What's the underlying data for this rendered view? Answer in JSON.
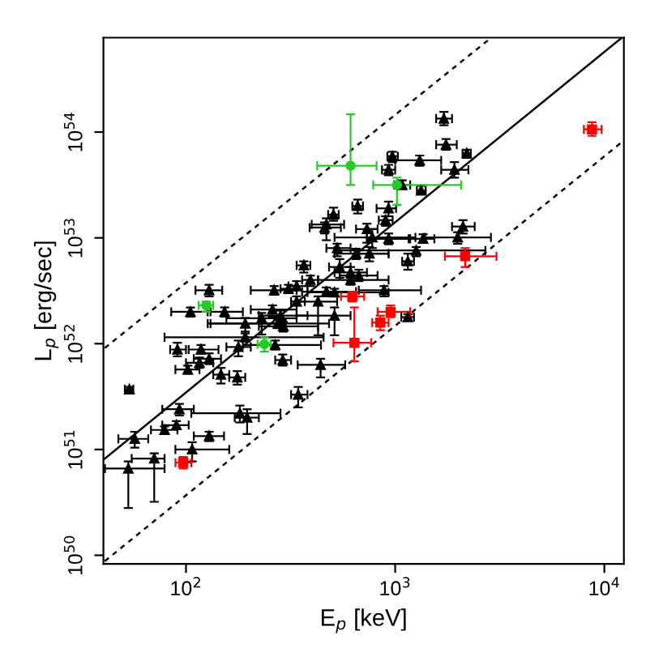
{
  "chart_data": {
    "type": "scatter",
    "xlabel": "E$_{p}$ [keV]",
    "ylabel": "L$_{p}$ [erg/sec]",
    "log": "xy",
    "grid": false,
    "xlim": [
      40.3,
      12400
    ],
    "ylim": [
      8.3e+49,
      7.8e+54
    ],
    "xticks": [
      {
        "value": 100,
        "label": "10$^{2}$"
      },
      {
        "value": 1000,
        "label": "10$^{3}$"
      },
      {
        "value": 10000,
        "label": "10$^{4}$"
      }
    ],
    "yticks": [
      {
        "value": 1e+50,
        "label": "10$^{50}$"
      },
      {
        "value": 1e+51,
        "label": "10$^{51}$"
      },
      {
        "value": 1e+52,
        "label": "10$^{52}$"
      },
      {
        "value": 1e+53,
        "label": "10$^{53}$"
      },
      {
        "value": 1e+54,
        "label": "10$^{54}$"
      }
    ],
    "series": [
      {
        "type": "line",
        "color": "#000000",
        "line_style": "solid",
        "marker": "none",
        "x": [
          40.9,
          12000
        ],
        "values": [
          8.2e+50,
          7.66e+54
        ]
      },
      {
        "type": "line",
        "color": "#000000",
        "line_style": "dashed",
        "marker": "none",
        "x": [
          40.9,
          2880
        ],
        "values": [
          9.1e+51,
          7.8e+54
        ]
      },
      {
        "type": "line",
        "color": "#000000",
        "line_style": "dashed",
        "marker": "none",
        "x": [
          40.9,
          12000
        ],
        "values": [
          8.8e+49,
          7.9e+53
        ]
      },
      {
        "color": "#000000",
        "marker": "triangle",
        "x": [
          1710,
          1750,
          2200,
          970,
          1310,
          930,
          1920,
          1080,
          1330,
          662,
          507,
          930,
          900,
          469,
          460,
          733,
          2110,
          1990,
          1360,
          777,
          930,
          1260,
          1150,
          753,
          650,
          528,
          366,
          543,
          612,
          670,
          612,
          393,
          338,
          309,
          264,
          469,
          513,
          885,
          428,
          338,
          129,
          105,
          153,
          259,
          283,
          230,
          192,
          292,
          275,
          513,
          178,
          192,
          267,
          91,
          118,
          129,
          116,
          102,
          147,
          176,
          290,
          440,
          53.6,
          344,
          93,
          181,
          196,
          79,
          90,
          129,
          56.9,
          107,
          70.5,
          53,
          1150
        ],
        "values": [
          1.34e+54,
          7.6e+53,
          6.3e+53,
          5.9e+53,
          5.4e+53,
          4.4e+53,
          4.4e+53,
          3.16e+53,
          2.8e+53,
          2e+53,
          1.66e+53,
          1.9e+53,
          1.47e+53,
          1.34e+53,
          1.25e+53,
          1.21e+53,
          1.28e+53,
          1.01e+53,
          9.8e+52,
          1.01e+53,
          9.8e+52,
          7.6e+52,
          6e+52,
          7.1e+52,
          7.1e+52,
          8e+52,
          5.5e+52,
          5.3e+52,
          4.7e+52,
          4.4e+52,
          4e+52,
          4e+52,
          3.5e+52,
          3.3e+52,
          3.2e+52,
          3.1e+52,
          3.05e+52,
          3.2e+52,
          2.5e+52,
          2.5e+52,
          3.2e+52,
          2e+52,
          2e+52,
          2.1e+52,
          1.84e+52,
          1.74e+52,
          1.55e+52,
          1.46e+52,
          1.55e+52,
          1.84e+52,
          9.3e+51,
          1.15e+52,
          9.7e+51,
          8.8e+51,
          8.8e+51,
          7.2e+51,
          6.6e+51,
          5.7e+51,
          5.1e+51,
          4.8e+51,
          7e+51,
          6.3e+51,
          3.7e+51,
          3.3e+51,
          2.4e+51,
          2.2e+51,
          2e+51,
          1.53e+51,
          1.7e+51,
          1.34e+51,
          1.26e+51,
          1e+51,
          8.2e+50,
          6.6e+50,
          1.78e+52
        ],
        "xerrors": [
          [
            1570,
            1870
          ],
          [
            1570,
            1970
          ],
          [
            2100,
            2300
          ],
          [
            918,
            1030
          ],
          [
            1000,
            1660
          ],
          [
            865,
            1000
          ],
          [
            1660,
            2240
          ],
          [
            990,
            1180
          ],
          [
            1270,
            1400
          ],
          [
            624,
            702
          ],
          [
            478,
            537
          ],
          [
            815,
            1010
          ],
          [
            835,
            973
          ],
          [
            399,
            570
          ],
          [
            390,
            550
          ],
          [
            650,
            824
          ],
          [
            1870,
            2400
          ],
          [
            1390,
            2870
          ],
          [
            1160,
            1540
          ],
          [
            513,
            1250
          ],
          [
            733,
            1180
          ],
          [
            513,
            2700
          ],
          [
            1080,
            1230
          ],
          [
            670,
            930
          ],
          [
            513,
            930
          ],
          [
            469,
            612
          ],
          [
            338,
            393
          ],
          [
            483,
            612
          ],
          [
            513,
            733
          ],
          [
            543,
            824
          ],
          [
            428,
            930
          ],
          [
            359,
            428
          ],
          [
            309,
            381
          ],
          [
            283,
            338
          ],
          [
            204,
            338
          ],
          [
            359,
            650
          ],
          [
            381,
            930
          ],
          [
            670,
            1330
          ],
          [
            338,
            528
          ],
          [
            318,
            370
          ],
          [
            111,
            149
          ],
          [
            85,
            131
          ],
          [
            127,
            187
          ],
          [
            204,
            338
          ],
          [
            223,
            381
          ],
          [
            156,
            338
          ],
          [
            127,
            300
          ],
          [
            223,
            428
          ],
          [
            131,
            483
          ],
          [
            338,
            612
          ],
          [
            156,
            204
          ],
          [
            79,
            455
          ],
          [
            187,
            442
          ],
          [
            84,
            100
          ],
          [
            103,
            143
          ],
          [
            109,
            147
          ],
          [
            100,
            135
          ],
          [
            89,
            116
          ],
          [
            135,
            161
          ],
          [
            161,
            192
          ],
          [
            267,
            318
          ],
          [
            342,
            577
          ],
          [
            51,
            56
          ],
          [
            318,
            381
          ],
          [
            77,
            109
          ],
          [
            106,
            283
          ],
          [
            171,
            223
          ],
          [
            68,
            91
          ],
          [
            77,
            103
          ],
          [
            109,
            152
          ],
          [
            47.5,
            66
          ],
          [
            89,
            161
          ],
          [
            55,
            79
          ],
          [
            41,
            79
          ],
          [
            1070,
            1230
          ]
        ],
        "errors": [
          [
            1.16e+54,
            1.55e+54
          ],
          [
            6.8e+53,
            8.6e+53
          ],
          [
            5.7e+53,
            6.8e+53
          ],
          [
            5.2e+53,
            6.5e+53
          ],
          [
            4.8e+53,
            6e+53
          ],
          [
            3.9e+53,
            4.9e+53
          ],
          [
            3.7e+53,
            5.2e+53
          ],
          [
            2.9e+53,
            3.5e+53
          ],
          [
            2.6e+53,
            3.1e+53
          ],
          [
            1.7e+53,
            2.3e+53
          ],
          [
            1.45e+53,
            1.93e+53
          ],
          [
            1.6e+53,
            2.2e+53
          ],
          [
            1.3e+53,
            1.6e+53
          ],
          [
            9.5e+52,
            1.53e+53
          ],
          [
            1.1e+53,
            1.4e+53
          ],
          [
            9e+52,
            1.36e+53
          ],
          [
            1.1e+53,
            1.47e+53
          ],
          [
            8.8e+52,
            1.13e+53
          ],
          [
            9e+52,
            1.08e+53
          ],
          [
            8e+52,
            1.21e+53
          ],
          [
            8.7e+52,
            1.1e+53
          ],
          [
            6.7e+52,
            8.2e+52
          ],
          [
            5e+52,
            7.1e+52
          ],
          [
            6e+52,
            8.2e+52
          ],
          [
            6.3e+52,
            7.9e+52
          ],
          [
            6.7e+52,
            8.8e+52
          ],
          [
            4.7e+52,
            6e+52
          ],
          [
            4.2e+52,
            6.3e+52
          ],
          [
            4.2e+52,
            5.3e+52
          ],
          [
            3.9e+52,
            5e+52
          ],
          [
            3.6e+52,
            4.4e+52
          ],
          [
            3.5e+52,
            4.4e+52
          ],
          [
            3.2e+52,
            3.9e+52
          ],
          [
            3e+52,
            3.6e+52
          ],
          [
            2.9e+52,
            3.5e+52
          ],
          [
            2.8e+52,
            3.4e+52
          ],
          [
            2.8e+52,
            3.3e+52
          ],
          [
            2.8e+52,
            3.5e+52
          ],
          [
            1.2e+52,
            2.8e+52
          ],
          [
            2.3e+52,
            2.8e+52
          ],
          [
            2.8e+52,
            3.6e+52
          ],
          [
            1.8e+52,
            2.2e+52
          ],
          [
            1.8e+52,
            2.2e+52
          ],
          [
            1.8e+52,
            2.3e+52
          ],
          [
            1.65e+52,
            2.05e+52
          ],
          [
            1.22e+52,
            1.95e+52
          ],
          [
            1.3e+52,
            1.75e+52
          ],
          [
            1.3e+52,
            1.6e+52
          ],
          [
            1.4e+52,
            1.7e+52
          ],
          [
            1.2e+52,
            2.2e+52
          ],
          [
            7.6e+51,
            1.07e+52
          ],
          [
            1.05e+52,
            1.25e+52
          ],
          [
            8.8e+51,
            1.07e+52
          ],
          [
            7.6e+51,
            1.02e+52
          ],
          [
            8e+51,
            9.7e+51
          ],
          [
            6.4e+51,
            8.1e+51
          ],
          [
            5.9e+51,
            7.4e+51
          ],
          [
            5.2e+51,
            6.2e+51
          ],
          [
            4.2e+51,
            5.9e+51
          ],
          [
            4.1e+51,
            5.5e+51
          ],
          [
            6.2e+51,
            7.9e+51
          ],
          [
            4.8e+51,
            7.2e+51
          ],
          [
            3.5e+51,
            3.9e+51
          ],
          [
            2.5e+51,
            3.9e+51
          ],
          [
            2.1e+51,
            2.7e+51
          ],
          [
            1.8e+51,
            2.6e+51
          ],
          [
            1.4e+51,
            2.4e+51
          ],
          [
            1.4e+51,
            1.65e+51
          ],
          [
            1.55e+51,
            1.85e+51
          ],
          [
            1.2e+51,
            1.47e+51
          ],
          [
            1.04e+51,
            1.47e+51
          ],
          [
            7.7e+50,
            1.17e+51
          ],
          [
            3.2e+50,
            9.2e+50
          ],
          [
            2.8e+50,
            7.7e+50
          ],
          [
            1.65e+52,
            1.9e+52
          ]
        ]
      },
      {
        "color": "#22cc22",
        "marker": "circle",
        "x": [
          612,
          1020,
          125,
          237
        ],
        "values": [
          4.8e+53,
          3.16e+53,
          2.3e+52,
          9.9e+51
        ],
        "xerrors": [
          [
            424,
            815
          ],
          [
            785,
            2070
          ],
          [
            115,
            135
          ],
          [
            220,
            254
          ]
        ],
        "errors": [
          [
            3.16e+53,
            1.47e+54
          ],
          [
            2.05e+53,
            3.7e+53
          ],
          [
            2e+52,
            2.5e+52
          ],
          [
            8.4e+51,
            1.15e+52
          ]
        ]
      },
      {
        "color": "#ff0000",
        "marker": "square",
        "x": [
          8730,
          2160,
          624,
          951,
          849,
          638,
          97
        ],
        "values": [
          1.06e+54,
          6.7e+52,
          2.8e+52,
          2e+52,
          1.58e+52,
          1.02e+52,
          7.5e+50
        ],
        "xerrors": [
          [
            7980,
            9700
          ],
          [
            1730,
            3050
          ],
          [
            551,
            711
          ],
          [
            824,
            1180
          ],
          [
            777,
            930
          ],
          [
            507,
            767
          ],
          [
            89,
            106
          ]
        ],
        "errors": [
          [
            9.2e+53,
            1.24e+54
          ],
          [
            5.3e+52,
            8e+52
          ],
          [
            2.5e+52,
            3.1e+52
          ],
          [
            1.78e+52,
            2.3e+52
          ],
          [
            1.34e+52,
            1.84e+52
          ],
          [
            6.8e+51,
            2.2e+52
          ],
          [
            6.6e+50,
            8.5e+50
          ]
        ]
      }
    ]
  }
}
